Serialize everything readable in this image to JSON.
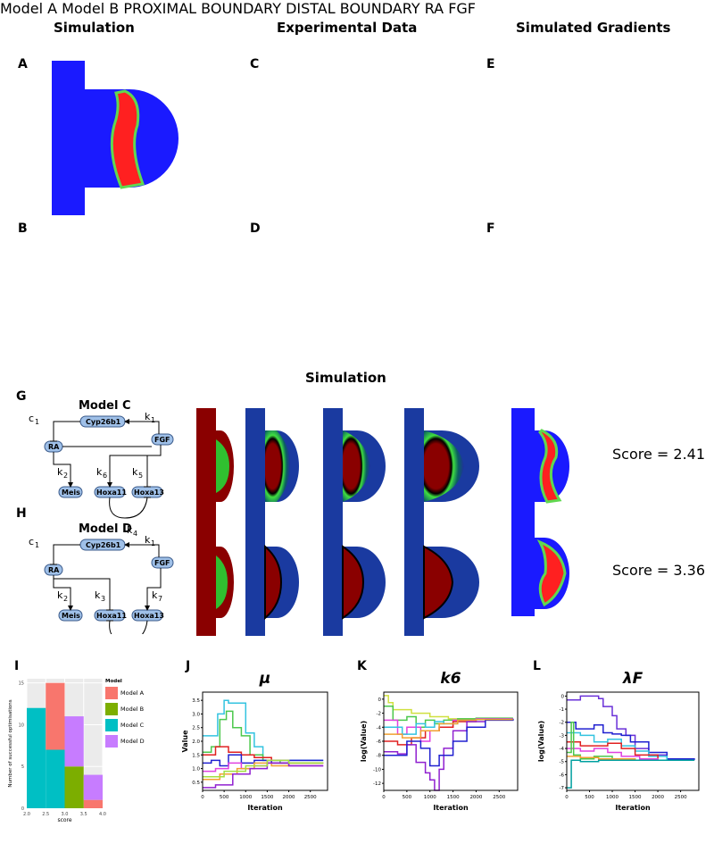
{
  "headers": {
    "simulation": "Simulation",
    "experimental": "Experimental Data",
    "gradients": "Simulated Gradients",
    "simulation_mid": "Simulation"
  },
  "panels": {
    "A": "A",
    "B": "B",
    "C": "C",
    "D": "D",
    "E": "E",
    "F": "F",
    "G": "G",
    "H": "H",
    "I": "I",
    "J": "J",
    "K": "K",
    "L": "L"
  },
  "top": {
    "model_a": "Model A",
    "model_b": "Model B",
    "proximal_1": "PROXIMAL",
    "proximal_2": "BOUNDARY",
    "distal_1": "DISTAL",
    "distal_2": "BOUNDARY",
    "ra": "RA",
    "fgf": "FGF"
  },
  "networks": {
    "model_c": {
      "title": "Model C",
      "nodes": {
        "cyp": "Cyp26b1",
        "ra": "RA",
        "fgf": "FGF",
        "meis": "Meis",
        "hoxa11": "Hoxa11",
        "hoxa13": "Hoxa13"
      },
      "params": {
        "c1": "c",
        "c1_sub": "1",
        "k1": "k",
        "k1_sub": "1",
        "k2": "k",
        "k2_sub": "2",
        "k6": "k",
        "k6_sub": "6",
        "k5": "k",
        "k5_sub": "5",
        "k4": "k",
        "k4_sub": "4"
      },
      "score": "Score = 2.41"
    },
    "model_d": {
      "title": "Model D",
      "nodes": {
        "cyp": "Cyp26b1",
        "ra": "RA",
        "fgf": "FGF",
        "meis": "Meis",
        "hoxa11": "Hoxa11",
        "hoxa13": "Hoxa13"
      },
      "params": {
        "c1": "c",
        "c1_sub": "1",
        "k1": "k",
        "k1_sub": "1",
        "k2": "k",
        "k2_sub": "2",
        "k3": "k",
        "k3_sub": "3",
        "k7": "k",
        "k7_sub": "7",
        "k4": "k",
        "k4_sub": "4"
      },
      "score": "Score = 3.36"
    }
  },
  "colors": {
    "blue": "#1a1aff",
    "red": "#ff2020",
    "green": "#60d850",
    "dark_red": "#8a0000",
    "model_a": "#f8766d",
    "model_b": "#7cae00",
    "model_c": "#00bfc4",
    "model_d": "#c77cff"
  },
  "chart_data": [
    {
      "type": "bar",
      "panel": "I",
      "title": "",
      "xlabel": "score",
      "ylabel": "Number of successful optimisations",
      "legend_title": "Model",
      "legend_position": "right",
      "x_ticks": [
        "2.0",
        "2.5",
        "3.0",
        "3.5",
        "4.0"
      ],
      "y_ticks": [
        "0",
        "5",
        "10",
        "15"
      ],
      "xlim": [
        2.0,
        4.0
      ],
      "ylim": [
        0,
        15.5
      ],
      "bin_width": 0.5,
      "series": [
        {
          "name": "Model A",
          "bins": [
            2.75,
            3.75
          ],
          "values": [
            8,
            1
          ]
        },
        {
          "name": "Model B",
          "bins": [
            3.25
          ],
          "values": [
            5
          ]
        },
        {
          "name": "Model C",
          "bins": [
            2.25,
            2.75
          ],
          "values": [
            12,
            7
          ]
        },
        {
          "name": "Model D",
          "bins": [
            3.25,
            3.75
          ],
          "values": [
            6,
            3
          ]
        }
      ]
    },
    {
      "type": "line",
      "panel": "J",
      "title": "μ",
      "xlabel": "Iteration",
      "ylabel": "Value",
      "x_ticks": [
        "0",
        "500",
        "1000",
        "1500",
        "2000",
        "2500"
      ],
      "y_ticks": [
        "0.5",
        "1.0",
        "1.5",
        "2.0",
        "2.5",
        "3.0",
        "3.5"
      ],
      "xlim": [
        0,
        2900
      ],
      "ylim": [
        0.2,
        3.8
      ],
      "series": [
        {
          "x": [
            0,
            200,
            350,
            500,
            600,
            900,
            1000,
            1200,
            1400,
            1800,
            2200,
            2800
          ],
          "y": [
            2.2,
            2.2,
            3.0,
            3.5,
            3.4,
            3.4,
            2.3,
            1.8,
            1.3,
            1.3,
            1.3,
            1.3
          ],
          "color": "#33c3e0"
        },
        {
          "x": [
            0,
            200,
            400,
            550,
            700,
            900,
            1100,
            1400,
            1800,
            2800
          ],
          "y": [
            1.6,
            1.8,
            2.8,
            3.1,
            2.5,
            2.2,
            1.5,
            1.3,
            1.2,
            1.2
          ],
          "color": "#4cc84c"
        },
        {
          "x": [
            0,
            300,
            600,
            900,
            1200,
            1600,
            2000,
            2800
          ],
          "y": [
            1.5,
            1.8,
            1.6,
            1.5,
            1.4,
            1.2,
            1.2,
            1.2
          ],
          "color": "#e02020"
        },
        {
          "x": [
            0,
            200,
            400,
            600,
            900,
            1200,
            1600,
            2000,
            2800
          ],
          "y": [
            1.2,
            1.3,
            1.1,
            1.5,
            1.2,
            1.3,
            1.2,
            1.3,
            1.3
          ],
          "color": "#2020d0"
        },
        {
          "x": [
            0,
            300,
            600,
            900,
            1200,
            1500,
            2000,
            2800
          ],
          "y": [
            0.9,
            1.0,
            1.2,
            1.0,
            1.1,
            1.3,
            1.1,
            1.1
          ],
          "color": "#e040e0"
        },
        {
          "x": [
            0,
            400,
            800,
            1200,
            1600,
            2000,
            2800
          ],
          "y": [
            0.6,
            0.8,
            1.0,
            1.2,
            1.1,
            1.2,
            1.2
          ],
          "color": "#f0a030"
        },
        {
          "x": [
            0,
            300,
            700,
            1100,
            1500,
            2000,
            2800
          ],
          "y": [
            0.3,
            0.4,
            0.8,
            1.0,
            1.2,
            1.1,
            1.1
          ],
          "color": "#9020d0"
        },
        {
          "x": [
            0,
            500,
            1000,
            1500,
            2000,
            2800
          ],
          "y": [
            0.7,
            0.9,
            1.1,
            1.3,
            1.2,
            1.2
          ],
          "color": "#a0e040"
        }
      ]
    },
    {
      "type": "line",
      "panel": "K",
      "title": "k6",
      "xlabel": "Iteration",
      "ylabel": "log(Value)",
      "x_ticks": [
        "0",
        "500",
        "1000",
        "1500",
        "2000",
        "2500"
      ],
      "y_ticks": [
        "0",
        "-2",
        "-4",
        "-6",
        "-8",
        "-10",
        "-12"
      ],
      "xlim": [
        0,
        2900
      ],
      "ylim": [
        -13,
        1
      ],
      "series": [
        {
          "x": [
            0,
            100,
            200,
            600,
            1000,
            1400,
            2000,
            2800
          ],
          "y": [
            0.5,
            -0.5,
            -1.5,
            -2.0,
            -2.5,
            -2.8,
            -2.8,
            -2.8
          ],
          "color": "#d0e040"
        },
        {
          "x": [
            0,
            200,
            500,
            700,
            900,
            1100,
            1300,
            1600,
            2000,
            2800
          ],
          "y": [
            -1.0,
            -3.0,
            -2.5,
            -4.0,
            -3.0,
            -3.5,
            -3.0,
            -2.8,
            -2.7,
            -2.7
          ],
          "color": "#4cc84c"
        },
        {
          "x": [
            0,
            300,
            500,
            800,
            1000,
            1200,
            1500,
            2000,
            2800
          ],
          "y": [
            -3.0,
            -5.0,
            -4.0,
            -6.0,
            -4.5,
            -4.0,
            -3.0,
            -2.8,
            -2.8
          ],
          "color": "#e040e0"
        },
        {
          "x": [
            0,
            300,
            600,
            900,
            1200,
            1500,
            2000,
            2800
          ],
          "y": [
            -6.0,
            -6.5,
            -5.5,
            -4.5,
            -4.0,
            -3.2,
            -2.9,
            -2.8
          ],
          "color": "#e02020"
        },
        {
          "x": [
            0,
            400,
            700,
            900,
            1100,
            1300,
            1600,
            2000,
            2800
          ],
          "y": [
            -4.0,
            -5.0,
            -3.5,
            -4.0,
            -3.2,
            -3.5,
            -3.0,
            -2.9,
            -2.9
          ],
          "color": "#33c3e0"
        },
        {
          "x": [
            0,
            300,
            500,
            700,
            900,
            1000,
            1100,
            1200,
            1300,
            1500,
            1800,
            2200,
            2800
          ],
          "y": [
            -7.5,
            -7.8,
            -6.5,
            -9.0,
            -10.5,
            -11.5,
            -13.0,
            -10.0,
            -7.0,
            -4.5,
            -3.2,
            -2.9,
            -2.8
          ],
          "color": "#9020d0"
        },
        {
          "x": [
            0,
            200,
            500,
            800,
            1000,
            1200,
            1500,
            1800,
            2200,
            2800
          ],
          "y": [
            -8.0,
            -8.0,
            -6.0,
            -7.0,
            -9.5,
            -8.0,
            -6.0,
            -4.0,
            -3.0,
            -2.8
          ],
          "color": "#2020d0"
        },
        {
          "x": [
            0,
            400,
            800,
            1200,
            1600,
            2000,
            2800
          ],
          "y": [
            -5.0,
            -5.5,
            -4.5,
            -3.5,
            -3.0,
            -2.9,
            -2.9
          ],
          "color": "#f0a030"
        }
      ]
    },
    {
      "type": "line",
      "panel": "L",
      "title": "λF",
      "xlabel": "Iteration",
      "ylabel": "log(Value)",
      "x_ticks": [
        "0",
        "500",
        "1000",
        "1500",
        "2000",
        "2500"
      ],
      "y_ticks": [
        "0",
        "-1",
        "-2",
        "-3",
        "-4",
        "-5",
        "-6",
        "-7"
      ],
      "xlim": [
        0,
        2900
      ],
      "ylim": [
        -7.2,
        0.3
      ],
      "series": [
        {
          "x": [
            0,
            200,
            300,
            700,
            800,
            1000,
            1100,
            1300,
            1500,
            1800,
            2200,
            2800
          ],
          "y": [
            -0.3,
            -0.3,
            0.0,
            -0.2,
            -0.8,
            -1.5,
            -2.5,
            -3.0,
            -4.0,
            -4.5,
            -4.9,
            -4.9
          ],
          "color": "#6a30d8"
        },
        {
          "x": [
            0,
            200,
            400,
            600,
            800,
            1000,
            1200,
            1400,
            1800,
            2200,
            2800
          ],
          "y": [
            -2.0,
            -2.5,
            -2.5,
            -2.2,
            -2.8,
            -2.9,
            -3.0,
            -3.5,
            -4.3,
            -4.8,
            -4.9
          ],
          "color": "#2020d0"
        },
        {
          "x": [
            0,
            300,
            600,
            900,
            1200,
            1500,
            1800,
            2200,
            2800
          ],
          "y": [
            -2.8,
            -3.0,
            -3.5,
            -3.3,
            -3.8,
            -4.2,
            -4.6,
            -4.9,
            -4.9
          ],
          "color": "#33c3e0"
        },
        {
          "x": [
            0,
            300,
            600,
            900,
            1200,
            1500,
            2000,
            2800
          ],
          "y": [
            -3.5,
            -3.8,
            -3.8,
            -3.6,
            -4.0,
            -4.5,
            -4.9,
            -4.9
          ],
          "color": "#e02020"
        },
        {
          "x": [
            0,
            300,
            600,
            900,
            1200,
            1600,
            2000,
            2800
          ],
          "y": [
            -4.0,
            -4.2,
            -4.0,
            -4.3,
            -4.6,
            -4.8,
            -4.9,
            -4.9
          ],
          "color": "#e040e0"
        },
        {
          "x": [
            0,
            100,
            150,
            300,
            600,
            1000,
            1500,
            2000,
            2800
          ],
          "y": [
            -4.3,
            -2.0,
            -4.5,
            -4.8,
            -4.6,
            -4.8,
            -4.9,
            -4.9,
            -4.9
          ],
          "color": "#4cc84c"
        },
        {
          "x": [
            0,
            300,
            700,
            1100,
            1500,
            2000,
            2800
          ],
          "y": [
            -4.6,
            -4.7,
            -4.8,
            -4.8,
            -4.9,
            -4.9,
            -4.9
          ],
          "color": "#f0a030"
        },
        {
          "x": [
            0,
            100,
            300,
            700,
            1200,
            2000,
            2800
          ],
          "y": [
            -7.0,
            -4.9,
            -5.0,
            -4.9,
            -4.9,
            -4.9,
            -4.9
          ],
          "color": "#00a0a0"
        }
      ]
    }
  ]
}
